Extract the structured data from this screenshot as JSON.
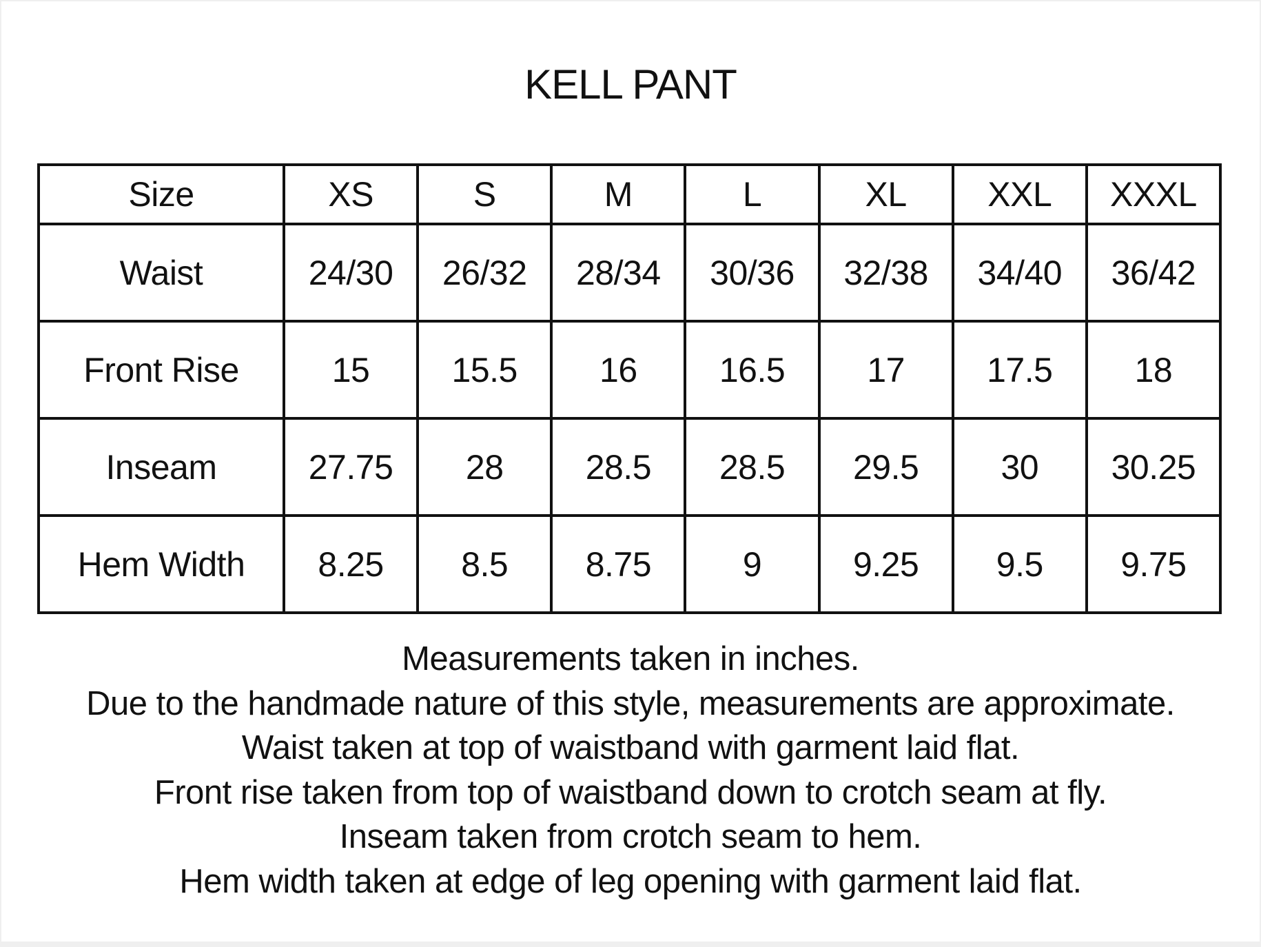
{
  "title": "KELL PANT",
  "table": {
    "header": [
      "Size",
      "XS",
      "S",
      "M",
      "L",
      "XL",
      "XXL",
      "XXXL"
    ],
    "rows": [
      [
        "Waist",
        "24/30",
        "26/32",
        "28/34",
        "30/36",
        "32/38",
        "34/40",
        "36/42"
      ],
      [
        "Front Rise",
        "15",
        "15.5",
        "16",
        "16.5",
        "17",
        "17.5",
        "18"
      ],
      [
        "Inseam",
        "27.75",
        "28",
        "28.5",
        "28.5",
        "29.5",
        "30",
        "30.25"
      ],
      [
        "Hem Width",
        "8.25",
        "8.5",
        "8.75",
        "9",
        "9.25",
        "9.5",
        "9.75"
      ]
    ]
  },
  "notes": [
    "Measurements taken in inches.",
    "Due to the handmade nature of this style, measurements are approximate.",
    "Waist taken at top of waistband with garment laid flat.",
    "Front rise taken from top of waistband down to crotch seam at fly.",
    "Inseam taken from crotch seam to hem.",
    "Hem width taken at edge of leg opening with garment laid flat."
  ]
}
